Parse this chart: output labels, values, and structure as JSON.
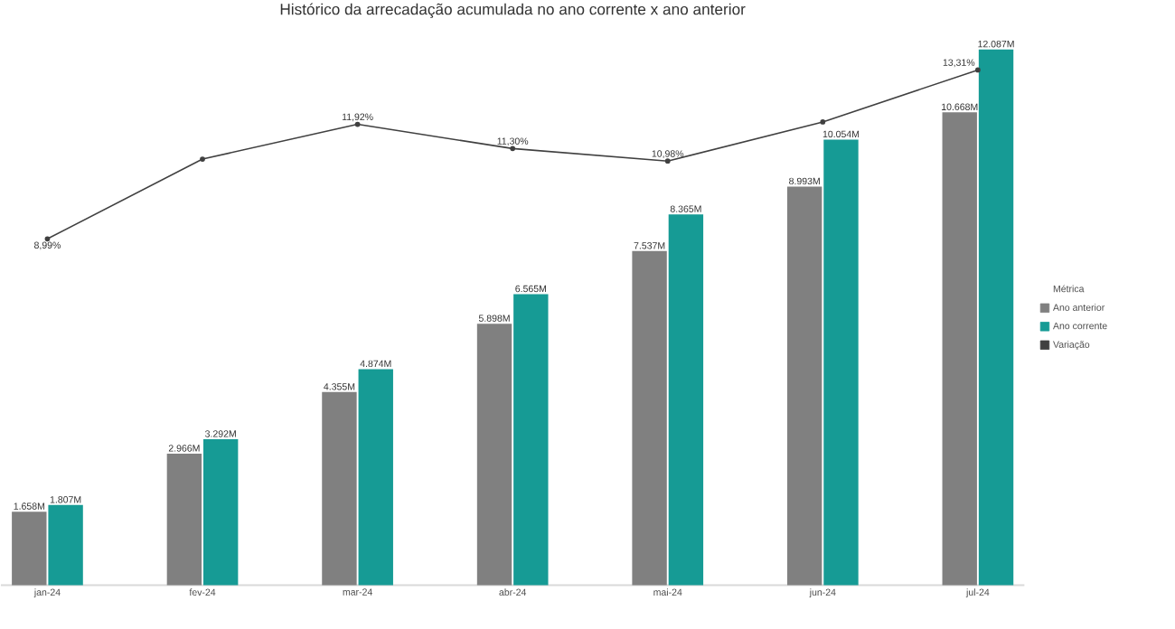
{
  "chart_data": {
    "type": "bar",
    "title": "Histórico da arrecadação acumulada no ano corrente x ano anterior",
    "categories": [
      "jan-24",
      "fev-24",
      "mar-24",
      "abr-24",
      "mai-24",
      "jun-24",
      "jul-24"
    ],
    "series": [
      {
        "name": "Ano anterior",
        "color": "#808080",
        "values": [
          1658,
          2966,
          4355,
          5898,
          7537,
          8993,
          10668
        ],
        "value_labels": [
          "1.658M",
          "2.966M",
          "4.355M",
          "5.898M",
          "7.537M",
          "8.993M",
          "10.668M"
        ]
      },
      {
        "name": "Ano corrente",
        "color": "#169b95",
        "values": [
          1807,
          3292,
          4874,
          6565,
          8365,
          10054,
          12087
        ],
        "value_labels": [
          "1.807M",
          "3.292M",
          "4.874M",
          "6.565M",
          "8.365M",
          "10.054M",
          "12.087M"
        ]
      },
      {
        "name": "Variação",
        "type": "line",
        "axis": "y2",
        "color": "#404040",
        "values": [
          8.99,
          11.03,
          11.92,
          11.3,
          10.98,
          11.98,
          13.31
        ],
        "value_labels": [
          "8,99%",
          null,
          "11,92%",
          "11,30%",
          "10,98%",
          null,
          "13,31%"
        ]
      }
    ],
    "legend": "right",
    "legend_title": "Métrica",
    "tick_labels": "x",
    "marker": "circle",
    "line_style": "solid"
  }
}
